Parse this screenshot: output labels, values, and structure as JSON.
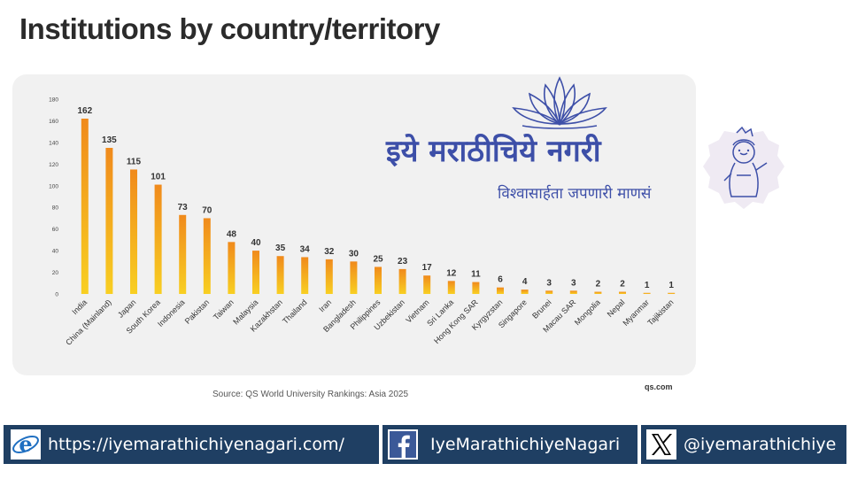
{
  "title": "Institutions by country/territory",
  "source": "Source: QS World University Rankings: Asia 2025",
  "site": "qs.com",
  "brand": {
    "title": "इये मराठीचिये नगरी",
    "tagline": "विश्वासार्हता जपणारी माणसं",
    "lotus_icon": "lotus-icon",
    "krishna_icon": "krishna-avatar"
  },
  "footer": {
    "website": "https://iyemarathichiyenagari.com/",
    "facebook": "IyeMarathichiyeNagari",
    "x_handle": "@iyemarathichiye",
    "icons": [
      "browser-e-icon",
      "facebook-icon",
      "x-icon"
    ]
  },
  "colors": {
    "bar_top": "#f08a1c",
    "bar_bottom": "#f8cf22",
    "brand": "#3d4fa8",
    "footer": "#1f3f63"
  },
  "chart_data": {
    "type": "bar",
    "categories": [
      "India",
      "China (Mainland)",
      "Japan",
      "South Korea",
      "Indonesia",
      "Pakistan",
      "Taiwan",
      "Malaysia",
      "Kazakhstan",
      "Thailand",
      "Iran",
      "Bangladesh",
      "Philippines",
      "Uzbekistan",
      "Vietnam",
      "Sri Lanka",
      "Hong Kong SAR",
      "Kyrgyzstan",
      "Singapore",
      "Brunei",
      "Macau SAR",
      "Mongolia",
      "Nepal",
      "Myanmar",
      "Tajikistan"
    ],
    "values": [
      162,
      135,
      115,
      101,
      73,
      70,
      48,
      40,
      35,
      34,
      32,
      30,
      25,
      23,
      17,
      12,
      11,
      6,
      4,
      3,
      3,
      2,
      2,
      1,
      1
    ],
    "yticks": [
      0,
      20,
      40,
      60,
      80,
      100,
      120,
      140,
      160,
      180
    ],
    "ylim": [
      0,
      180
    ],
    "grid": false,
    "legend": "none"
  }
}
